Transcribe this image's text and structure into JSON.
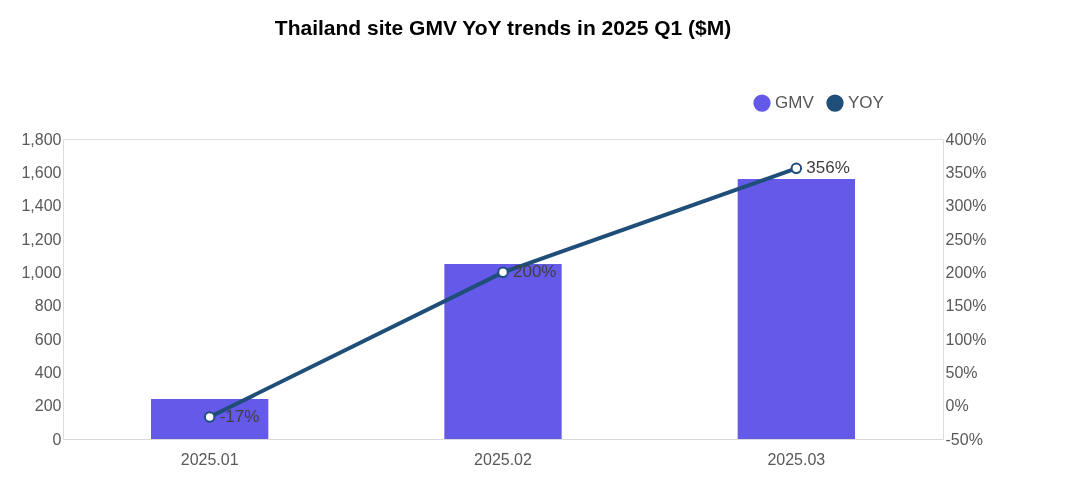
{
  "chart_data": {
    "type": "bar",
    "title": "Thailand site GMV YoY trends in 2025 Q1  ($M)",
    "categories": [
      "2025.01",
      "2025.02",
      "2025.03"
    ],
    "series": [
      {
        "name": "GMV",
        "color": "#6459e8",
        "values": [
          240,
          1050,
          1560
        ]
      },
      {
        "name": "YOY",
        "type": "line",
        "axis": "y2",
        "color": "#1f4e79",
        "marker": "circle",
        "values": [
          -17,
          200,
          356
        ],
        "value_labels": [
          "-17%",
          "200%",
          "356%"
        ]
      }
    ],
    "ylim": [
      0,
      1800
    ],
    "yticks": [
      {
        "value": 0,
        "label": "0"
      },
      {
        "value": 200,
        "label": "200"
      },
      {
        "value": 400,
        "label": "400"
      },
      {
        "value": 600,
        "label": "600"
      },
      {
        "value": 800,
        "label": "800"
      },
      {
        "value": 1000,
        "label": "1,000"
      },
      {
        "value": 1200,
        "label": "1,200"
      },
      {
        "value": 1400,
        "label": "1,400"
      },
      {
        "value": 1600,
        "label": "1,600"
      },
      {
        "value": 1800,
        "label": "1,800"
      }
    ],
    "y2lim": [
      -50,
      400
    ],
    "y2ticks": [
      {
        "value": -50,
        "label": "-50%"
      },
      {
        "value": 0,
        "label": "0%"
      },
      {
        "value": 50,
        "label": "50%"
      },
      {
        "value": 100,
        "label": "100%"
      },
      {
        "value": 150,
        "label": "150%"
      },
      {
        "value": 200,
        "label": "200%"
      },
      {
        "value": 250,
        "label": "250%"
      },
      {
        "value": 300,
        "label": "300%"
      },
      {
        "value": 350,
        "label": "350%"
      },
      {
        "value": 400,
        "label": "400%"
      }
    ],
    "grid": false,
    "legend": "top right"
  }
}
